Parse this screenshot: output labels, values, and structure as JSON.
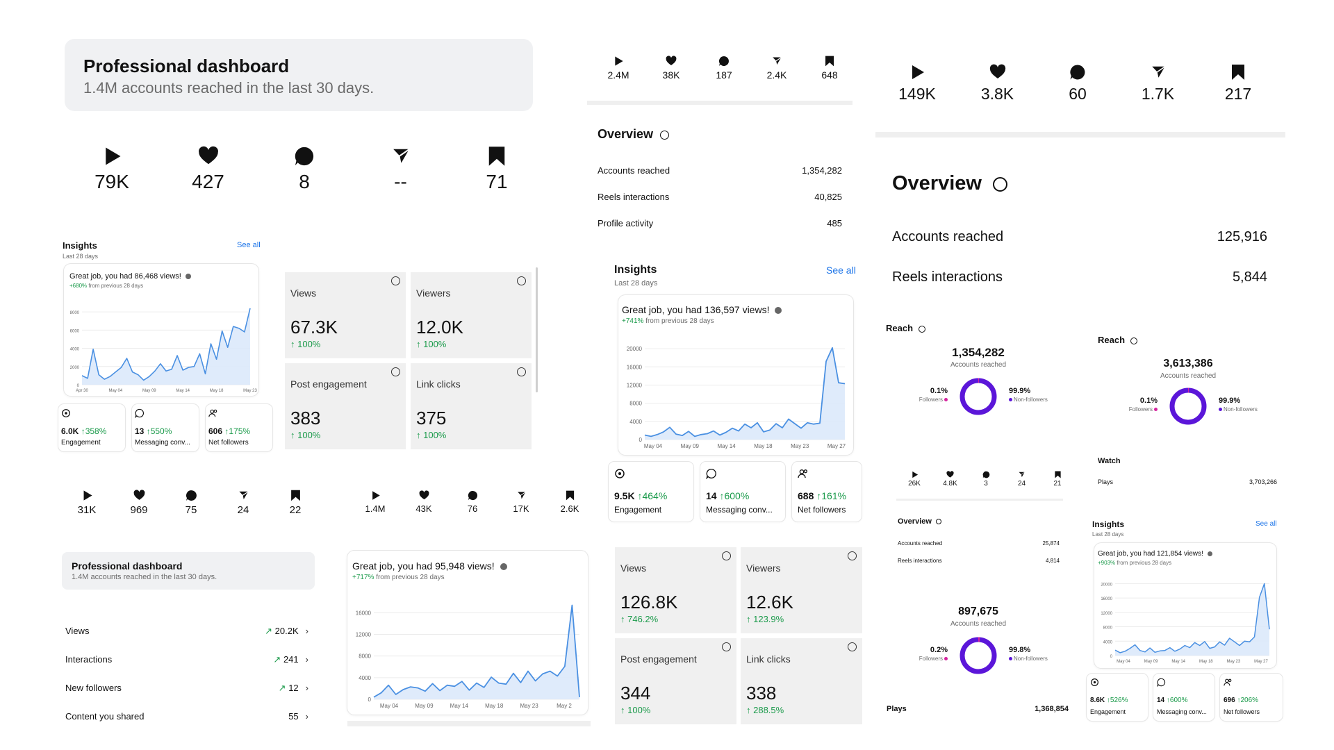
{
  "p1": {
    "header": {
      "title": "Professional dashboard",
      "subtitle": "1.4M accounts reached in the last 30 days."
    },
    "stats": [
      {
        "icon": "play-icon",
        "value": "79K"
      },
      {
        "icon": "heart-icon",
        "value": "427"
      },
      {
        "icon": "comment-icon",
        "value": "8"
      },
      {
        "icon": "share-icon",
        "value": "--"
      },
      {
        "icon": "bookmark-icon",
        "value": "71"
      }
    ],
    "insights": {
      "title": "Insights",
      "sub": "Last 28 days",
      "see_all": "See all"
    },
    "chart": {
      "title": "Great job, you had 86,468 views!",
      "delta": "+680%",
      "delta_rest": "from previous 28 days",
      "yticks": [
        "8000",
        "6000",
        "4000",
        "2000",
        "0"
      ],
      "xticks": [
        "Apr 30",
        "May 04",
        "May 09",
        "May 14",
        "May 18",
        "May 23"
      ]
    },
    "mini": [
      {
        "icon": "engagement-icon",
        "value": "6.0K",
        "pct": "↑358%",
        "label": "Engagement"
      },
      {
        "icon": "message-icon",
        "value": "13",
        "pct": "↑550%",
        "label": "Messaging conv..."
      },
      {
        "icon": "followers-icon",
        "value": "606",
        "pct": "↑175%",
        "label": "Net followers"
      }
    ],
    "tiles": [
      {
        "label": "Views",
        "value": "67.3K",
        "pct": "↑ 100%"
      },
      {
        "label": "Viewers",
        "value": "12.0K",
        "pct": "↑ 100%"
      },
      {
        "label": "Post engagement",
        "value": "383",
        "pct": "↑ 100%"
      },
      {
        "label": "Link clicks",
        "value": "375",
        "pct": "↑ 100%"
      }
    ]
  },
  "p2": {
    "stats": [
      {
        "icon": "play-icon",
        "value": "31K"
      },
      {
        "icon": "heart-icon",
        "value": "969"
      },
      {
        "icon": "comment-icon",
        "value": "75"
      },
      {
        "icon": "share-icon",
        "value": "24"
      },
      {
        "icon": "bookmark-icon",
        "value": "22"
      }
    ],
    "header": {
      "title": "Professional dashboard",
      "subtitle": "1.4M accounts reached in the last 30 days."
    },
    "list": [
      {
        "label": "Views",
        "value": "20.2K",
        "arrow": "↗"
      },
      {
        "label": "Interactions",
        "value": "241",
        "arrow": "↗"
      },
      {
        "label": "New followers",
        "value": "12",
        "arrow": "↗"
      },
      {
        "label": "Content you shared",
        "value": "55",
        "arrow": ""
      }
    ]
  },
  "p3": {
    "stats": [
      {
        "icon": "play-icon",
        "value": "1.4M"
      },
      {
        "icon": "heart-icon",
        "value": "43K"
      },
      {
        "icon": "comment-icon",
        "value": "76"
      },
      {
        "icon": "share-icon",
        "value": "17K"
      },
      {
        "icon": "bookmark-icon",
        "value": "2.6K"
      }
    ],
    "chart": {
      "title": "Great job, you had 95,948 views!",
      "delta": "+717%",
      "delta_rest": "from previous 28 days",
      "yticks": [
        "16000",
        "12000",
        "8000",
        "4000",
        "0"
      ],
      "xticks": [
        "May 04",
        "May 09",
        "May 14",
        "May 18",
        "May 23",
        "May 2"
      ]
    }
  },
  "p4": {
    "stats": [
      {
        "icon": "play-icon",
        "value": "2.4M"
      },
      {
        "icon": "heart-icon",
        "value": "38K"
      },
      {
        "icon": "comment-icon",
        "value": "187"
      },
      {
        "icon": "share-icon",
        "value": "2.4K"
      },
      {
        "icon": "bookmark-icon",
        "value": "648"
      }
    ],
    "overview": {
      "title": "Overview",
      "rows": [
        {
          "label": "Accounts reached",
          "value": "1,354,282"
        },
        {
          "label": "Reels interactions",
          "value": "40,825"
        },
        {
          "label": "Profile activity",
          "value": "485"
        }
      ]
    },
    "insights": {
      "title": "Insights",
      "sub": "Last 28 days",
      "see_all": "See all"
    },
    "chart": {
      "title": "Great job, you had 136,597 views!",
      "delta": "+741%",
      "delta_rest": "from previous 28 days",
      "yticks": [
        "20000",
        "16000",
        "12000",
        "8000",
        "4000",
        "0"
      ],
      "xticks": [
        "May 04",
        "May 09",
        "May 14",
        "May 18",
        "May 23",
        "May 27"
      ]
    },
    "mini": [
      {
        "icon": "engagement-icon",
        "value": "9.5K",
        "pct": "↑464%",
        "label": "Engagement"
      },
      {
        "icon": "message-icon",
        "value": "14",
        "pct": "↑600%",
        "label": "Messaging conv..."
      },
      {
        "icon": "followers-icon",
        "value": "688",
        "pct": "↑161%",
        "label": "Net followers"
      }
    ],
    "tiles": [
      {
        "label": "Views",
        "value": "126.8K",
        "pct": "↑ 746.2%"
      },
      {
        "label": "Viewers",
        "value": "12.6K",
        "pct": "↑ 123.9%"
      },
      {
        "label": "Post engagement",
        "value": "344",
        "pct": "↑ 100%"
      },
      {
        "label": "Link clicks",
        "value": "338",
        "pct": "↑ 288.5%"
      }
    ]
  },
  "p5": {
    "stats": [
      {
        "icon": "play-icon",
        "value": "149K"
      },
      {
        "icon": "heart-icon",
        "value": "3.8K"
      },
      {
        "icon": "comment-icon",
        "value": "60"
      },
      {
        "icon": "share-icon",
        "value": "1.7K"
      },
      {
        "icon": "bookmark-icon",
        "value": "217"
      }
    ],
    "overview": {
      "title": "Overview",
      "rows": [
        {
          "label": "Accounts reached",
          "value": "125,916"
        },
        {
          "label": "Reels interactions",
          "value": "5,844"
        }
      ]
    },
    "reach_a": {
      "title": "Reach",
      "value": "1,354,282",
      "sub": "Accounts reached",
      "left_pct": "0.1%",
      "left_label": "Followers",
      "right_pct": "99.9%",
      "right_label": "Non-followers"
    },
    "small_stats": [
      {
        "icon": "play-icon",
        "value": "26K"
      },
      {
        "icon": "heart-icon",
        "value": "4.8K"
      },
      {
        "icon": "comment-icon",
        "value": "3"
      },
      {
        "icon": "share-icon",
        "value": "24"
      },
      {
        "icon": "bookmark-icon",
        "value": "21"
      }
    ],
    "small_overview": {
      "title": "Overview",
      "rows": [
        {
          "label": "Accounts reached",
          "value": "25,874"
        },
        {
          "label": "Reels interactions",
          "value": "4,814"
        }
      ]
    },
    "reach_c": {
      "value": "897,675",
      "sub": "Accounts reached",
      "left_pct": "0.2%",
      "left_label": "Followers",
      "right_pct": "99.8%",
      "right_label": "Non-followers"
    },
    "plays": {
      "label": "Plays",
      "value": "1,368,854"
    },
    "reach_b": {
      "title": "Reach",
      "value": "3,613,386",
      "sub": "Accounts reached",
      "left_pct": "0.1%",
      "left_label": "Followers",
      "right_pct": "99.9%",
      "right_label": "Non-followers"
    },
    "watch": {
      "title": "Watch",
      "label": "Plays",
      "value": "3,703,266"
    },
    "insights": {
      "title": "Insights",
      "sub": "Last 28 days",
      "see_all": "See all"
    },
    "chart": {
      "title": "Great job, you had 121,854 views!",
      "delta": "+903%",
      "delta_rest": "from previous 28 days",
      "yticks": [
        "20000",
        "16000",
        "12000",
        "8000",
        "4000",
        "0"
      ],
      "xticks": [
        "May 04",
        "May 09",
        "May 14",
        "May 18",
        "May 23",
        "May 27"
      ]
    },
    "mini": [
      {
        "icon": "engagement-icon",
        "value": "8.6K",
        "pct": "↑526%",
        "label": "Engagement"
      },
      {
        "icon": "message-icon",
        "value": "14",
        "pct": "↑600%",
        "label": "Messaging conv..."
      },
      {
        "icon": "followers-icon",
        "value": "696",
        "pct": "↑206%",
        "label": "Net followers"
      }
    ]
  },
  "chart_data": [
    {
      "type": "area",
      "ylim": [
        0,
        9000
      ],
      "color": "#4a90e2",
      "values": [
        1000,
        700,
        3900,
        1100,
        600,
        900,
        1400,
        1900,
        2900,
        1400,
        1100,
        500,
        900,
        1500,
        2300,
        1500,
        1700,
        3200,
        1600,
        1900,
        2000,
        3400,
        1200,
        4500,
        2800,
        5900,
        4100,
        6400,
        6200,
        5800,
        8400
      ]
    },
    {
      "type": "area",
      "ylim": [
        0,
        19000
      ],
      "color": "#4a90e2",
      "values": [
        400,
        1200,
        2600,
        900,
        1800,
        2300,
        2100,
        1500,
        2900,
        1600,
        2600,
        2400,
        3300,
        1700,
        3000,
        2200,
        4100,
        3000,
        2800,
        4800,
        3100,
        5200,
        3400,
        4700,
        5200,
        4300,
        6100,
        17400,
        400
      ]
    },
    {
      "type": "area",
      "ylim": [
        0,
        22000
      ],
      "color": "#4a90e2",
      "values": [
        1000,
        700,
        1100,
        1700,
        2700,
        1200,
        900,
        1800,
        700,
        1100,
        1300,
        1900,
        1000,
        1600,
        2500,
        1900,
        3400,
        2600,
        3700,
        1700,
        2100,
        3500,
        2600,
        4500,
        3500,
        2500,
        3700,
        3400,
        3600,
        17200,
        20200,
        12500,
        12300
      ]
    },
    {
      "type": "area",
      "ylim": [
        0,
        22000
      ],
      "color": "#4a90e2",
      "values": [
        1500,
        800,
        1200,
        2000,
        3000,
        1400,
        1000,
        2100,
        900,
        1300,
        1400,
        2200,
        1200,
        1800,
        2800,
        2200,
        3600,
        2800,
        3900,
        2000,
        2400,
        3800,
        2900,
        4800,
        3800,
        2800,
        4000,
        3800,
        5200,
        16200,
        20000,
        7300
      ]
    }
  ]
}
